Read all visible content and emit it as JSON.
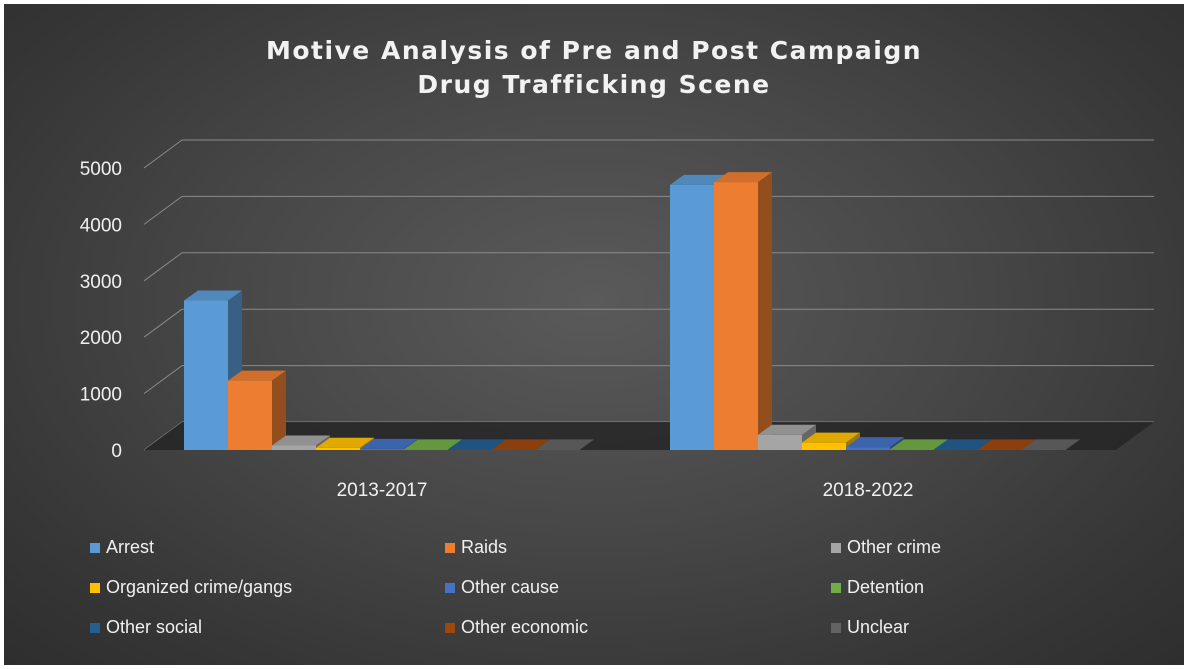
{
  "chart_data": {
    "type": "bar",
    "title": "Motive Analysis of Pre and Post Campaign Drug Trafficking Scene",
    "title_lines": [
      "Motive Analysis of Pre and Post Campaign",
      "Drug Trafficking Scene"
    ],
    "categories": [
      "2013-2017",
      "2018-2022"
    ],
    "series": [
      {
        "name": "Arrest",
        "values": [
          2650,
          4700
        ],
        "color": "#5b9bd5"
      },
      {
        "name": "Raids",
        "values": [
          1230,
          4750
        ],
        "color": "#ed7d31"
      },
      {
        "name": "Other crime",
        "values": [
          80,
          270
        ],
        "color": "#a5a5a5"
      },
      {
        "name": "Organized crime/gangs",
        "values": [
          40,
          130
        ],
        "color": "#ffc000"
      },
      {
        "name": "Other cause",
        "values": [
          20,
          50
        ],
        "color": "#4472c4"
      },
      {
        "name": "Detention",
        "values": [
          10,
          10
        ],
        "color": "#70ad47"
      },
      {
        "name": "Other social",
        "values": [
          10,
          10
        ],
        "color": "#255e91"
      },
      {
        "name": "Other economic",
        "values": [
          10,
          10
        ],
        "color": "#9e480e"
      },
      {
        "name": "Unclear",
        "values": [
          10,
          10
        ],
        "color": "#636363"
      }
    ],
    "y_ticks": [
      "0",
      "1000",
      "2000",
      "3000",
      "4000",
      "5000"
    ],
    "ylim": [
      0,
      5000
    ],
    "grid": true,
    "legend_position": "bottom",
    "three_d": true
  }
}
